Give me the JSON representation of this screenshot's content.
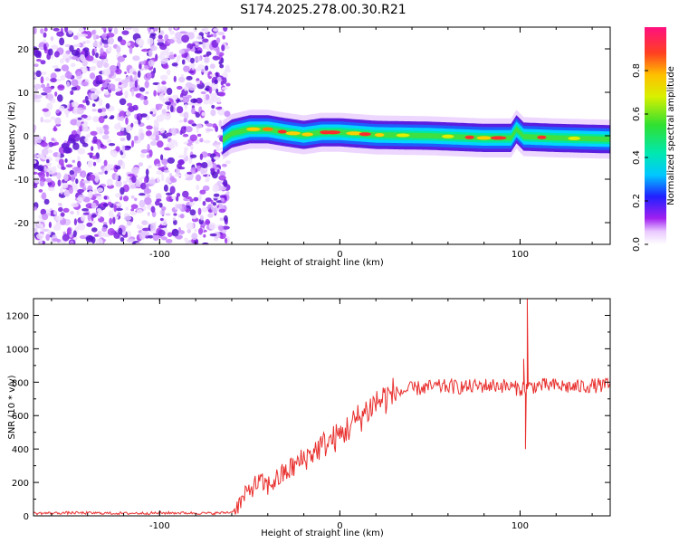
{
  "chart_data": [
    {
      "type": "heatmap",
      "title": "S174.2025.278.00.30.R21",
      "xlabel": "Height of straight line (km)",
      "ylabel": "Frequency (Hz)",
      "xlim": [
        -170,
        150
      ],
      "ylim": [
        -25,
        25
      ],
      "xticks": [
        -100,
        0,
        100
      ],
      "yticks": [
        -20,
        -10,
        0,
        10,
        20
      ],
      "colorbar": {
        "label": "Normalized spectral amplitude",
        "range": [
          0,
          1
        ],
        "ticks": [
          "0.0",
          "0.2",
          "0.4",
          "0.6",
          "0.8"
        ],
        "tick_values": [
          0.0,
          0.2,
          0.4,
          0.6,
          0.8
        ]
      },
      "noise_region_x": [
        -170,
        -65
      ],
      "signal_band": {
        "x_start": -65,
        "x_end": 150,
        "center_freq_points": [
          {
            "x": -65,
            "f": -1
          },
          {
            "x": -60,
            "f": 0.5
          },
          {
            "x": -50,
            "f": 1.5
          },
          {
            "x": -40,
            "f": 1.5
          },
          {
            "x": -30,
            "f": 0.8
          },
          {
            "x": -20,
            "f": 0.2
          },
          {
            "x": -10,
            "f": 0.8
          },
          {
            "x": 0,
            "f": 0.8
          },
          {
            "x": 20,
            "f": 0.2
          },
          {
            "x": 50,
            "f": 0.0
          },
          {
            "x": 80,
            "f": -0.5
          },
          {
            "x": 95,
            "f": -0.5
          },
          {
            "x": 98,
            "f": 1.5
          },
          {
            "x": 102,
            "f": -0.2
          },
          {
            "x": 120,
            "f": -0.5
          },
          {
            "x": 150,
            "f": -0.8
          }
        ]
      }
    },
    {
      "type": "line",
      "xlabel": "Height of straight line (km)",
      "ylabel": "SNR (10 * v/v)",
      "xlim": [
        -170,
        150
      ],
      "ylim": [
        0,
        1300
      ],
      "xticks": [
        -100,
        0,
        100
      ],
      "yticks": [
        0,
        200,
        400,
        600,
        800,
        1000,
        1200
      ],
      "series": [
        {
          "name": "SNR",
          "color": "#e8302e",
          "points": [
            {
              "x": -170,
              "y": 15
            },
            {
              "x": -150,
              "y": 18
            },
            {
              "x": -120,
              "y": 15
            },
            {
              "x": -90,
              "y": 18
            },
            {
              "x": -70,
              "y": 15
            },
            {
              "x": -60,
              "y": 22
            },
            {
              "x": -55,
              "y": 80
            },
            {
              "x": -50,
              "y": 160
            },
            {
              "x": -45,
              "y": 200
            },
            {
              "x": -40,
              "y": 180
            },
            {
              "x": -30,
              "y": 260
            },
            {
              "x": -20,
              "y": 340
            },
            {
              "x": -10,
              "y": 420
            },
            {
              "x": 0,
              "y": 480
            },
            {
              "x": 10,
              "y": 580
            },
            {
              "x": 20,
              "y": 680
            },
            {
              "x": 30,
              "y": 730
            },
            {
              "x": 40,
              "y": 760
            },
            {
              "x": 50,
              "y": 770
            },
            {
              "x": 60,
              "y": 775
            },
            {
              "x": 70,
              "y": 770
            },
            {
              "x": 80,
              "y": 780
            },
            {
              "x": 90,
              "y": 780
            },
            {
              "x": 100,
              "y": 760
            },
            {
              "x": 110,
              "y": 780
            },
            {
              "x": 120,
              "y": 780
            },
            {
              "x": 130,
              "y": 770
            },
            {
              "x": 140,
              "y": 780
            },
            {
              "x": 150,
              "y": 780
            }
          ],
          "spikes": [
            {
              "x": 102,
              "y": 940
            },
            {
              "x": 103,
              "y": 400
            },
            {
              "x": 104,
              "y": 1300
            }
          ]
        }
      ]
    }
  ]
}
